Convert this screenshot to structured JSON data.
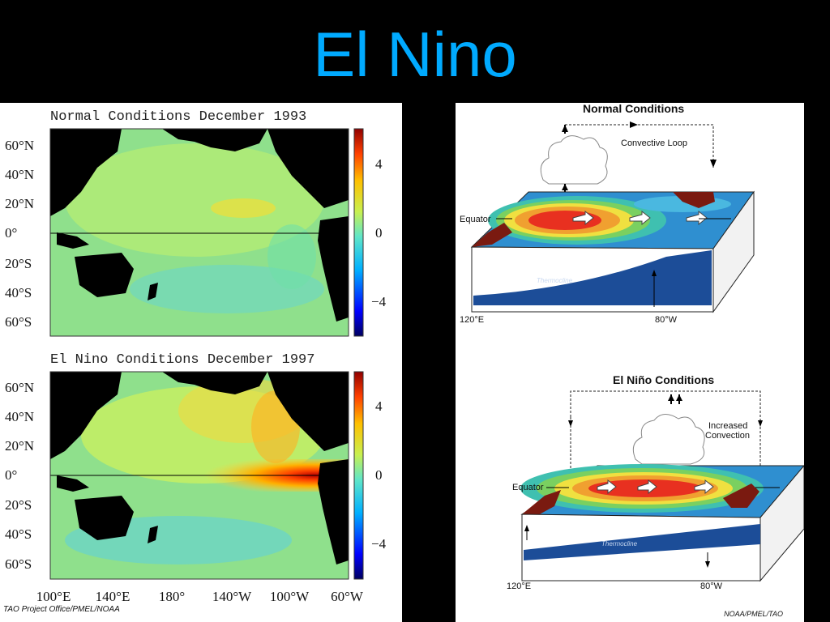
{
  "slide": {
    "title": "El Nino"
  },
  "left_panel": {
    "maps": [
      {
        "title": "Normal Conditions December 1993"
      },
      {
        "title": "El Nino Conditions December 1997"
      }
    ],
    "lat_labels": [
      "60°N",
      "40°N",
      "20°N",
      "0°",
      "20°S",
      "40°S",
      "60°S"
    ],
    "lon_labels": [
      "100°E",
      "140°E",
      "180°",
      "140°W",
      "100°W",
      "60°W"
    ],
    "colorbar_labels": [
      "4",
      "0",
      "−4"
    ],
    "credit": "TAO Project Office/PMEL/NOAA"
  },
  "right_panel": {
    "normal": {
      "title": "Normal Conditions",
      "loop_label": "Convective Loop",
      "equator_label": "Equator",
      "thermocline_label": "Thermocline",
      "lon_left": "120°E",
      "lon_right": "80°W"
    },
    "el_nino": {
      "title": "El Niño Conditions",
      "convection_label_1": "Increased",
      "convection_label_2": "Convection",
      "equator_label": "Equator",
      "thermocline_label": "Thermocline",
      "lon_left": "120°E",
      "lon_right": "80°W"
    },
    "credit": "NOAA/PMEL/TAO"
  },
  "colors": {
    "title": "#00aaff",
    "land": "#000000",
    "ocean_base": "#7fe08a",
    "warm": "#e8261a",
    "cool": "#4fc7e8",
    "coast": "#7a1a10"
  }
}
